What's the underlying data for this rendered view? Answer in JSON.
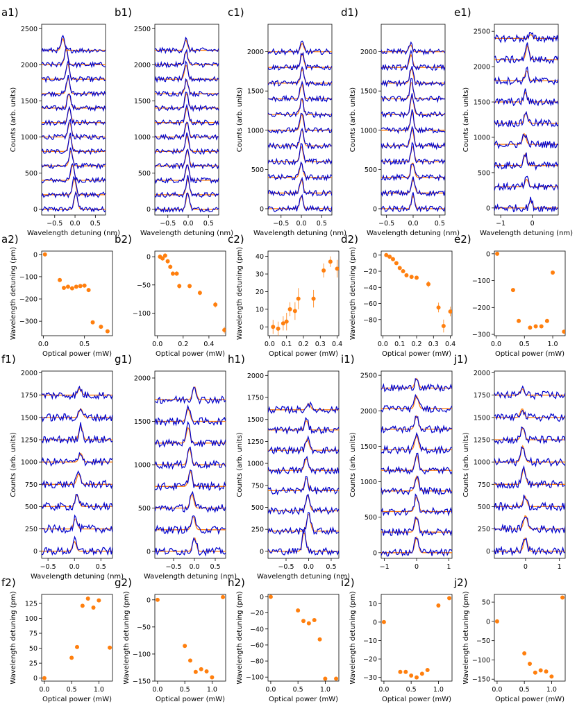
{
  "colors": {
    "spectrum": "#0000cc",
    "fit": "#ff7f0e",
    "points": "#ff7f0e",
    "axis": "#000000"
  },
  "chart_data": [
    {
      "label": "a1)",
      "type": "line",
      "xlabel": "Wavelength detuning (nm)",
      "ylabel": "Counts (arb. units)",
      "xlim": [
        -0.82,
        0.75
      ],
      "ylim": [
        -80,
        2560
      ],
      "xticks": [
        -0.5,
        0.0,
        0.5
      ],
      "xticklabels": [
        "−0.5",
        "0.0",
        "0.5"
      ],
      "yticks": [
        0,
        500,
        1000,
        1500,
        2000,
        2500
      ],
      "yticklabels": [
        "0",
        "500",
        "1000",
        "1500",
        "2000",
        "2500"
      ],
      "offset_step": 200,
      "count": 12,
      "peak_centers": [
        0.02,
        -0.02,
        -0.06,
        -0.1,
        -0.12,
        -0.13,
        -0.14,
        -0.15,
        -0.17,
        -0.18,
        -0.22,
        -0.3
      ],
      "peak_heights": [
        260,
        250,
        240,
        240,
        230,
        230,
        220,
        230,
        240,
        240,
        240,
        180
      ]
    },
    {
      "label": "b1)",
      "type": "line",
      "xlabel": "Wavelength detuning (nm)",
      "ylabel": "",
      "xlim": [
        -0.82,
        0.75
      ],
      "ylim": [
        -80,
        2560
      ],
      "xticks": [
        -0.5,
        0.0,
        0.5
      ],
      "xticklabels": [
        "−0.5",
        "0.0",
        "0.5"
      ],
      "yticks": [
        0,
        500,
        1000,
        1500,
        2000,
        2500
      ],
      "yticklabels": [
        "0",
        "500",
        "1000",
        "1500",
        "2000",
        "2500"
      ],
      "offset_step": 200,
      "count": 12,
      "peak_centers": [
        -0.01,
        -0.01,
        -0.02,
        -0.02,
        -0.03,
        -0.03,
        -0.03,
        -0.04,
        -0.04,
        -0.05,
        -0.05,
        -0.06
      ],
      "peak_heights": [
        250,
        240,
        250,
        240,
        240,
        230,
        230,
        230,
        210,
        220,
        200,
        160
      ]
    },
    {
      "label": "c1)",
      "type": "line",
      "xlabel": "Wavelength detuning (nm)",
      "ylabel": "Counts (arb. units)",
      "xlim": [
        -0.82,
        0.75
      ],
      "ylim": [
        -80,
        2350
      ],
      "xticks": [
        -0.5,
        0.0,
        0.5
      ],
      "xticklabels": [
        "−0.5",
        "0.0",
        "0.5"
      ],
      "yticks": [
        0,
        500,
        1000,
        1500,
        2000
      ],
      "yticklabels": [
        "0",
        "500",
        "1000",
        "1500",
        "2000"
      ],
      "offset_step": 200,
      "count": 11,
      "peak_centers": [
        0.0,
        0.0,
        0.0,
        0.0,
        0.01,
        0.01,
        0.01,
        0.01,
        0.02,
        0.02,
        0.02
      ],
      "peak_heights": [
        180,
        190,
        200,
        220,
        240,
        230,
        220,
        210,
        200,
        190,
        120
      ]
    },
    {
      "label": "d1)",
      "type": "line",
      "xlabel": "Wavelength detuning (nm)",
      "ylabel": "Counts (arb. units)",
      "xlim": [
        -0.6,
        0.6
      ],
      "ylim": [
        -80,
        2350
      ],
      "xticks": [
        -0.5,
        0.0,
        0.5
      ],
      "xticklabels": [
        "−0.5",
        "0.0",
        "0.5"
      ],
      "yticks": [
        0,
        500,
        1000,
        1500,
        2000
      ],
      "yticklabels": [
        "0",
        "500",
        "1000",
        "1500",
        "2000"
      ],
      "offset_step": 200,
      "count": 11,
      "peak_centers": [
        0.0,
        0.0,
        -0.01,
        -0.01,
        -0.02,
        -0.02,
        -0.02,
        -0.03,
        -0.03,
        -0.04,
        -0.05
      ],
      "peak_heights": [
        180,
        190,
        210,
        220,
        240,
        250,
        260,
        240,
        210,
        180,
        100
      ]
    },
    {
      "label": "e1)",
      "type": "line",
      "xlabel": "Wavelength detuning (nm)",
      "ylabel": "Counts (arb. units)",
      "xlim": [
        -1.2,
        0.82
      ],
      "ylim": [
        -100,
        2600
      ],
      "xticks": [
        -1,
        0
      ],
      "xticklabels": [
        "−1",
        "0"
      ],
      "yticks": [
        0,
        500,
        1000,
        1500,
        2000,
        2500
      ],
      "yticklabels": [
        "0",
        "500",
        "1000",
        "1500",
        "2000",
        "2500"
      ],
      "offset_step": 300,
      "count": 9,
      "peak_centers": [
        -0.05,
        -0.18,
        -0.22,
        -0.25,
        -0.2,
        -0.22,
        -0.18,
        -0.15,
        -0.05
      ],
      "peak_heights": [
        110,
        120,
        180,
        170,
        170,
        150,
        160,
        220,
        60
      ]
    },
    {
      "label": "a2)",
      "type": "scatter",
      "xlabel": "Optical power (mW)",
      "ylabel": "Wavelength detuning (pm)",
      "xlim": [
        -0.02,
        0.84
      ],
      "ylim": [
        -365,
        15
      ],
      "xticks": [
        0.0,
        0.5
      ],
      "xticklabels": [
        "0.0",
        "0.5"
      ],
      "yticks": [
        0,
        -100,
        -200,
        -300
      ],
      "yticklabels": [
        "0",
        "−100",
        "−200",
        "−300"
      ],
      "x": [
        0.02,
        0.2,
        0.25,
        0.3,
        0.35,
        0.4,
        0.45,
        0.5,
        0.55,
        0.6,
        0.7,
        0.78
      ],
      "y": [
        0,
        -115,
        -150,
        -145,
        -152,
        -145,
        -142,
        -140,
        -160,
        -305,
        -325,
        -345
      ]
    },
    {
      "label": "b2)",
      "type": "scatter",
      "xlabel": "Optical power (mW)",
      "ylabel": "",
      "xlim": [
        -0.02,
        0.53
      ],
      "ylim": [
        -140,
        10
      ],
      "xticks": [
        0.0,
        0.2,
        0.4
      ],
      "xticklabels": [
        "0.0",
        "0.2",
        "0.4"
      ],
      "yticks": [
        0,
        -50,
        -100
      ],
      "yticklabels": [
        "0",
        "−50",
        "−100"
      ],
      "x": [
        0.02,
        0.04,
        0.06,
        0.08,
        0.1,
        0.12,
        0.15,
        0.17,
        0.25,
        0.33,
        0.45,
        0.52
      ],
      "y": [
        0,
        -3,
        2,
        -8,
        -18,
        -30,
        -30,
        -52,
        -52,
        -64,
        -85,
        -130
      ],
      "err": [
        4,
        4,
        4,
        4,
        4,
        4,
        4,
        4,
        4,
        4,
        5,
        6
      ]
    },
    {
      "label": "c2)",
      "type": "scatter",
      "xlabel": "Optical power (mW)",
      "ylabel": "Wavelength detuning (pm)",
      "xlim": [
        -0.01,
        0.41
      ],
      "ylim": [
        -5,
        43
      ],
      "xticks": [
        0.0,
        0.1,
        0.2,
        0.3,
        0.4
      ],
      "xticklabels": [
        "0.0",
        "0.1",
        "0.2",
        "0.3",
        "0.4"
      ],
      "yticks": [
        0,
        10,
        20,
        30,
        40
      ],
      "yticklabels": [
        "0",
        "10",
        "20",
        "30",
        "40"
      ],
      "x": [
        0.02,
        0.05,
        0.08,
        0.1,
        0.12,
        0.15,
        0.17,
        0.26,
        0.32,
        0.36,
        0.4
      ],
      "y": [
        0,
        -1,
        2,
        3,
        10,
        9,
        16,
        16,
        32,
        37,
        33
      ],
      "err": [
        4,
        4,
        4,
        5,
        4,
        5,
        6,
        5,
        4,
        3,
        5
      ]
    },
    {
      "label": "d2)",
      "type": "scatter",
      "xlabel": "Optical power (mW)",
      "ylabel": "Wavelength detuning (pm)",
      "xlim": [
        -0.01,
        0.41
      ],
      "ylim": [
        -100,
        5
      ],
      "xticks": [
        0.0,
        0.1,
        0.2,
        0.3,
        0.4
      ],
      "xticklabels": [
        "0.0",
        "0.1",
        "0.2",
        "0.3",
        "0.4"
      ],
      "yticks": [
        0,
        -20,
        -40,
        -60,
        -80
      ],
      "yticklabels": [
        "0",
        "−20",
        "−40",
        "−60",
        "−80"
      ],
      "x": [
        0.02,
        0.04,
        0.06,
        0.08,
        0.1,
        0.12,
        0.14,
        0.17,
        0.2,
        0.27,
        0.33,
        0.36,
        0.4
      ],
      "y": [
        0,
        -2,
        -5,
        -10,
        -16,
        -20,
        -25,
        -27,
        -28,
        -36,
        -65,
        -88,
        -70
      ],
      "err": [
        2,
        2,
        2,
        2,
        2,
        2,
        2,
        2,
        2,
        4,
        6,
        8,
        6
      ]
    },
    {
      "label": "e2)",
      "type": "scatter",
      "xlabel": "Optical power (mW)",
      "ylabel": "",
      "xlim": [
        -0.03,
        1.22
      ],
      "ylim": [
        -305,
        10
      ],
      "xticks": [
        0.0,
        0.5,
        1.0
      ],
      "xticklabels": [
        "0.0",
        "0.5",
        "1.0"
      ],
      "yticks": [
        0,
        -100,
        -200,
        -300
      ],
      "yticklabels": [
        "0",
        "−100",
        "−200",
        "−300"
      ],
      "x": [
        0.02,
        0.3,
        0.4,
        0.6,
        0.7,
        0.8,
        0.9,
        1.0,
        1.2
      ],
      "y": [
        0,
        -135,
        -250,
        -275,
        -270,
        -270,
        -250,
        -70,
        -290
      ]
    },
    {
      "label": "f1)",
      "type": "line",
      "xlabel": "Wavelength detuning (nm)",
      "ylabel": "Counts (arb. units)",
      "xlim": [
        -0.62,
        0.72
      ],
      "ylim": [
        -80,
        2020
      ],
      "xticks": [
        -0.5,
        0.0,
        0.5
      ],
      "xticklabels": [
        "−0.5",
        "0.0",
        "0.5"
      ],
      "yticks": [
        0,
        250,
        500,
        750,
        1000,
        1250,
        1500,
        1750,
        2000
      ],
      "yticklabels": [
        "0",
        "250",
        "500",
        "750",
        "1000",
        "1250",
        "1500",
        "1750",
        "2000"
      ],
      "offset_step": 250,
      "count": 8,
      "peak_centers": [
        0.0,
        0.02,
        0.05,
        0.08,
        0.12,
        0.12,
        0.12,
        0.1
      ],
      "peak_heights": [
        120,
        130,
        150,
        130,
        110,
        170,
        110,
        80
      ]
    },
    {
      "label": "g1)",
      "type": "line",
      "xlabel": "Wavelength detuning (nm)",
      "ylabel": "",
      "xlim": [
        -0.95,
        0.75
      ],
      "ylim": [
        -80,
        2080
      ],
      "xticks": [
        -0.5,
        0.0,
        0.5
      ],
      "xticklabels": [
        "−0.5",
        "0.0",
        "0.5"
      ],
      "yticks": [
        0,
        500,
        1000,
        1500,
        2000
      ],
      "yticklabels": [
        "0",
        "500",
        "1000",
        "1500",
        "2000"
      ],
      "offset_step": 250,
      "count": 8,
      "peak_centers": [
        0.0,
        -0.03,
        -0.06,
        -0.1,
        -0.12,
        -0.15,
        -0.15,
        0.0
      ],
      "peak_heights": [
        180,
        170,
        180,
        200,
        210,
        200,
        160,
        170
      ]
    },
    {
      "label": "h1)",
      "type": "line",
      "xlabel": "Wavelength detuning (nm)",
      "ylabel": "Counts (arb. units)",
      "xlim": [
        -0.9,
        0.67
      ],
      "ylim": [
        -80,
        2050
      ],
      "xticks": [
        -0.5,
        0.0,
        0.5
      ],
      "xticklabels": [
        "−0.5",
        "0.0",
        "0.5"
      ],
      "yticks": [
        0,
        250,
        500,
        750,
        1000,
        1250,
        1500,
        1750,
        2000
      ],
      "yticklabels": [
        "0",
        "250",
        "500",
        "750",
        "1000",
        "1250",
        "1500",
        "1750",
        "2000"
      ],
      "offset_step": 230,
      "count": 8,
      "peak_centers": [
        -0.1,
        0.0,
        -0.02,
        -0.05,
        -0.05,
        -0.03,
        -0.05,
        0.0
      ],
      "peak_heights": [
        240,
        220,
        200,
        160,
        150,
        140,
        120,
        80
      ]
    },
    {
      "label": "i1)",
      "type": "line",
      "xlabel": "",
      "ylabel": "Counts (arb. units)",
      "xlim": [
        -1.1,
        1.1
      ],
      "ylim": [
        -80,
        2560
      ],
      "xticks": [
        -1,
        0,
        1
      ],
      "xticklabels": [
        "−1",
        "0",
        "1"
      ],
      "yticks": [
        0,
        500,
        1000,
        1500,
        2000,
        2500
      ],
      "yticklabels": [
        "0",
        "500",
        "1000",
        "1500",
        "2000",
        "2500"
      ],
      "offset_step": 290,
      "count": 9,
      "peak_centers": [
        0.0,
        0.0,
        0.0,
        0.0,
        0.0,
        0.0,
        0.0,
        0.0,
        0.0
      ],
      "peak_heights": [
        240,
        230,
        240,
        230,
        240,
        220,
        210,
        200,
        150
      ]
    },
    {
      "label": "j1)",
      "type": "line",
      "xlabel": "",
      "ylabel": "Counts (arb. units)",
      "xlim": [
        -0.92,
        1.17
      ],
      "ylim": [
        -80,
        2020
      ],
      "xticks": [
        0,
        1
      ],
      "xticklabels": [
        "0",
        "1"
      ],
      "yticks": [
        0,
        250,
        500,
        750,
        1000,
        1250,
        1500,
        1750,
        2000
      ],
      "yticklabels": [
        "0",
        "250",
        "500",
        "750",
        "1000",
        "1250",
        "1500",
        "1750",
        "2000"
      ],
      "offset_step": 250,
      "count": 8,
      "peak_centers": [
        0.0,
        0.0,
        -0.02,
        -0.05,
        -0.08,
        -0.08,
        -0.1,
        -0.1
      ],
      "peak_heights": [
        170,
        170,
        130,
        200,
        200,
        150,
        110,
        80
      ]
    },
    {
      "label": "f2)",
      "type": "scatter",
      "xlabel": "Optical power (mW)",
      "ylabel": "Wavelength detuning (pm)",
      "xlim": [
        -0.05,
        1.25
      ],
      "ylim": [
        -5,
        140
      ],
      "xticks": [
        0.0,
        0.5,
        1.0
      ],
      "xticklabels": [
        "0.0",
        "0.5",
        "1.0"
      ],
      "yticks": [
        0,
        25,
        50,
        75,
        100,
        125
      ],
      "yticklabels": [
        "0",
        "25",
        "50",
        "75",
        "100",
        "125"
      ],
      "x": [
        0.0,
        0.5,
        0.6,
        0.7,
        0.8,
        0.9,
        1.0,
        1.2
      ],
      "y": [
        0,
        34,
        52,
        121,
        133,
        118,
        130,
        51
      ]
    },
    {
      "label": "g2)",
      "type": "scatter",
      "xlabel": "Optical power (mW)",
      "ylabel": "Wavelength detuning (pm)",
      "xlim": [
        -0.05,
        1.25
      ],
      "ylim": [
        -150,
        10
      ],
      "xticks": [
        0.0,
        0.5,
        1.0
      ],
      "xticklabels": [
        "0.0",
        "0.5",
        "1.0"
      ],
      "yticks": [
        0,
        -50,
        -100,
        -150
      ],
      "yticklabels": [
        "0",
        "−50",
        "−100",
        "−150"
      ],
      "x": [
        0.0,
        0.5,
        0.6,
        0.7,
        0.8,
        0.9,
        1.0,
        1.2
      ],
      "y": [
        0,
        -85,
        -112,
        -133,
        -128,
        -132,
        -143,
        5
      ]
    },
    {
      "label": "h2)",
      "type": "scatter",
      "xlabel": "Optical power (mW)",
      "ylabel": "Wavelength detuning (pm)",
      "xlim": [
        -0.05,
        1.25
      ],
      "ylim": [
        -105,
        3
      ],
      "xticks": [
        0.0,
        0.5,
        1.0
      ],
      "xticklabels": [
        "0.0",
        "0.5",
        "1.0"
      ],
      "yticks": [
        0,
        -20,
        -40,
        -60,
        -80,
        -100
      ],
      "yticklabels": [
        "0",
        "−20",
        "−40",
        "−60",
        "−80",
        "−100"
      ],
      "x": [
        0.0,
        0.5,
        0.6,
        0.7,
        0.8,
        0.9,
        1.0,
        1.2
      ],
      "y": [
        0,
        -17,
        -30,
        -33,
        -29,
        -53,
        -102,
        -102
      ]
    },
    {
      "label": "i2)",
      "type": "scatter",
      "xlabel": "Optical power (mW)",
      "ylabel": "Wavelength detuning (pm)",
      "xlim": [
        -0.05,
        1.25
      ],
      "ylim": [
        -32,
        15
      ],
      "xticks": [
        0.0,
        0.5,
        1.0
      ],
      "xticklabels": [
        "0.0",
        "0.5",
        "1.0"
      ],
      "yticks": [
        10,
        0,
        -10,
        -20,
        -30
      ],
      "yticklabels": [
        "10",
        "0",
        "−10",
        "−20",
        "−30"
      ],
      "x": [
        0.0,
        0.3,
        0.4,
        0.5,
        0.6,
        0.7,
        0.8,
        1.0,
        1.2
      ],
      "y": [
        0,
        -27,
        -27,
        -29,
        -30,
        -28,
        -26,
        9,
        13
      ]
    },
    {
      "label": "j2)",
      "type": "scatter",
      "xlabel": "Optical power (mW)",
      "ylabel": "Wavelength detuning (pm)",
      "xlim": [
        -0.05,
        1.25
      ],
      "ylim": [
        -155,
        70
      ],
      "xticks": [
        0.0,
        0.5,
        1.0
      ],
      "xticklabels": [
        "0.0",
        "0.5",
        "1.0"
      ],
      "yticks": [
        50,
        0,
        -50,
        -100,
        -150
      ],
      "yticklabels": [
        "50",
        "0",
        "−50",
        "−100",
        "−150"
      ],
      "x": [
        0.0,
        0.5,
        0.6,
        0.7,
        0.8,
        0.9,
        1.0,
        1.2
      ],
      "y": [
        0,
        -83,
        -110,
        -133,
        -127,
        -130,
        -143,
        62
      ]
    }
  ]
}
